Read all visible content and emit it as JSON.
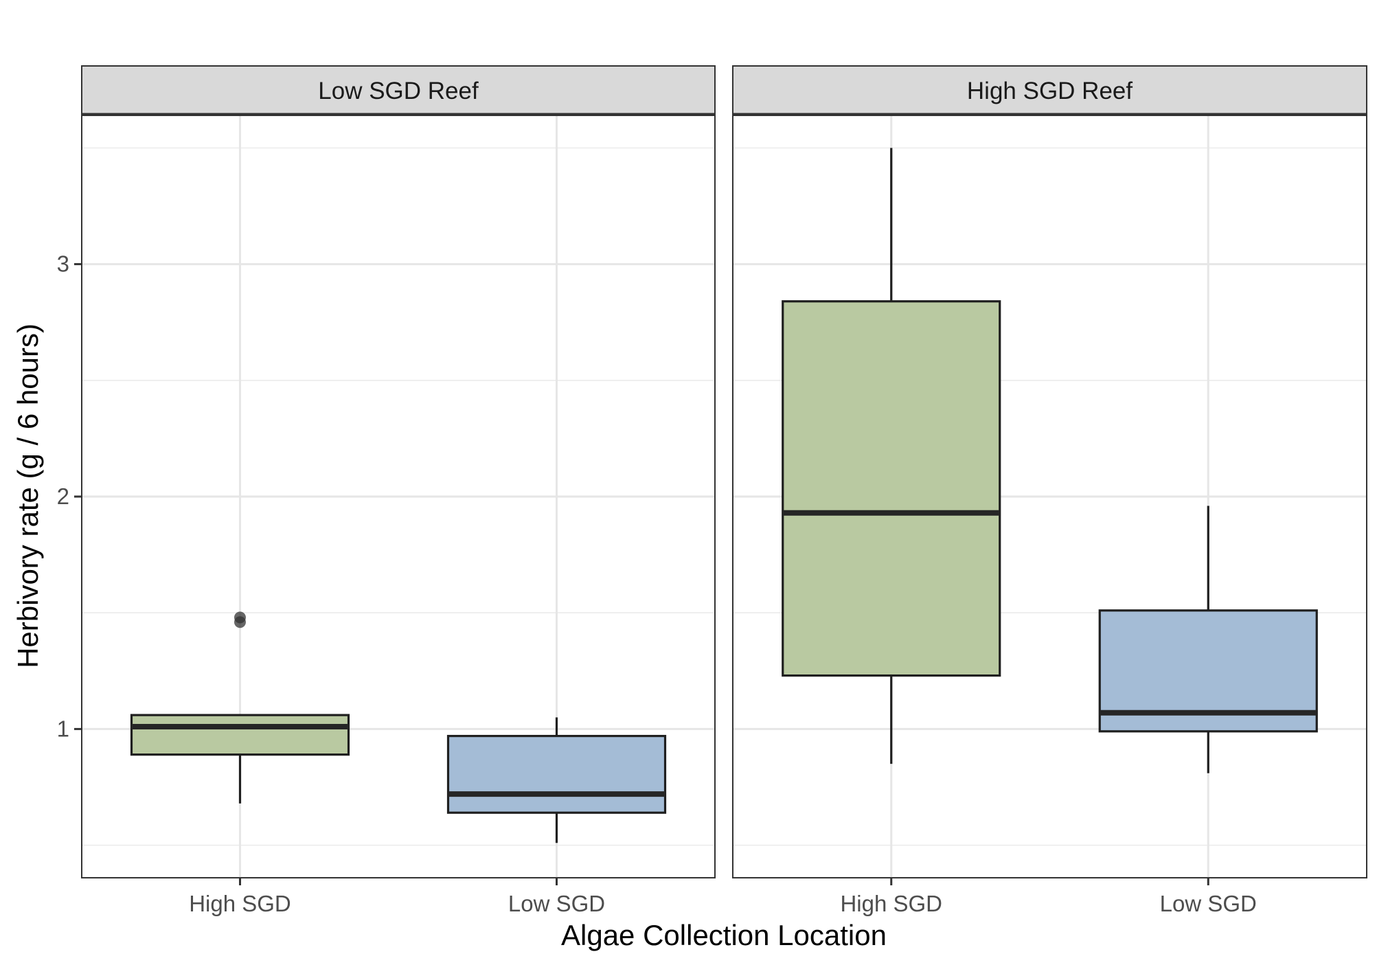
{
  "chart_data": {
    "type": "box",
    "xlabel": "Algae Collection Location",
    "ylabel": "Herbivory rate (g / 6 hours)",
    "ylim": [
      0.36,
      3.64
    ],
    "yticks": [
      1,
      2,
      3
    ],
    "grid": true,
    "categories": [
      "High SGD",
      "Low SGD"
    ],
    "fill_colors": {
      "High SGD": "#b9c9a1",
      "Low SGD": "#a4bcd6"
    },
    "panels": [
      {
        "title": "Low SGD Reef",
        "boxes": [
          {
            "category": "High SGD",
            "min": 0.68,
            "q1": 0.89,
            "median": 1.01,
            "q3": 1.06,
            "max": 1.06,
            "outliers": [
              1.46,
              1.48
            ]
          },
          {
            "category": "Low SGD",
            "min": 0.51,
            "q1": 0.64,
            "median": 0.72,
            "q3": 0.97,
            "max": 1.05,
            "outliers": []
          }
        ]
      },
      {
        "title": "High SGD Reef",
        "boxes": [
          {
            "category": "High SGD",
            "min": 0.85,
            "q1": 1.23,
            "median": 1.93,
            "q3": 2.84,
            "max": 3.5,
            "outliers": []
          },
          {
            "category": "Low SGD",
            "min": 0.81,
            "q1": 0.99,
            "median": 1.07,
            "q3": 1.51,
            "max": 1.96,
            "outliers": []
          }
        ]
      }
    ]
  }
}
